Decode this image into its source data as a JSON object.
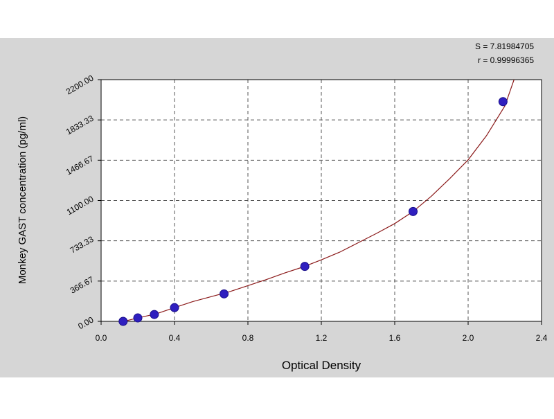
{
  "chart_data": {
    "type": "scatter",
    "xlabel": "Optical Density",
    "ylabel": "Monkey GAST concentration (pg/ml)",
    "xlim": [
      0.0,
      2.4
    ],
    "ylim": [
      0.0,
      2200.0
    ],
    "x_ticks": [
      "0.0",
      "0.4",
      "0.8",
      "1.2",
      "1.6",
      "2.0",
      "2.4"
    ],
    "y_ticks": [
      "0.00",
      "366.67",
      "733.33",
      "1100.00",
      "1466.67",
      "1833.33",
      "2200.00"
    ],
    "grid": true,
    "stats": {
      "s": "S = 7.81984705",
      "r": "r = 0.99996365"
    },
    "series": [
      {
        "x": [
          0.12,
          0.2,
          0.29,
          0.4,
          0.67,
          1.11,
          1.7,
          2.19
        ],
        "y": [
          0,
          31.25,
          62.5,
          125,
          250,
          500,
          1000,
          2000
        ]
      }
    ],
    "fit_curve": {
      "x": [
        0.1,
        0.2,
        0.3,
        0.4,
        0.5,
        0.6,
        0.7,
        0.8,
        0.9,
        1.0,
        1.1,
        1.2,
        1.3,
        1.4,
        1.5,
        1.6,
        1.7,
        1.8,
        1.9,
        2.0,
        2.1,
        2.2,
        2.25
      ],
      "y": [
        -10,
        31,
        68,
        125,
        180,
        225,
        270,
        325,
        380,
        440,
        495,
        560,
        630,
        715,
        800,
        890,
        1000,
        1140,
        1300,
        1470,
        1690,
        1960,
        2200
      ]
    },
    "colors": {
      "panel_bg": "#d6d6d6",
      "plot_bg": "#ffffff",
      "marker": "#2f1fbf",
      "marker_edge": "#1a0f8a",
      "curve": "#8b1a1a",
      "grid": "#555555",
      "text": "#000000"
    }
  }
}
